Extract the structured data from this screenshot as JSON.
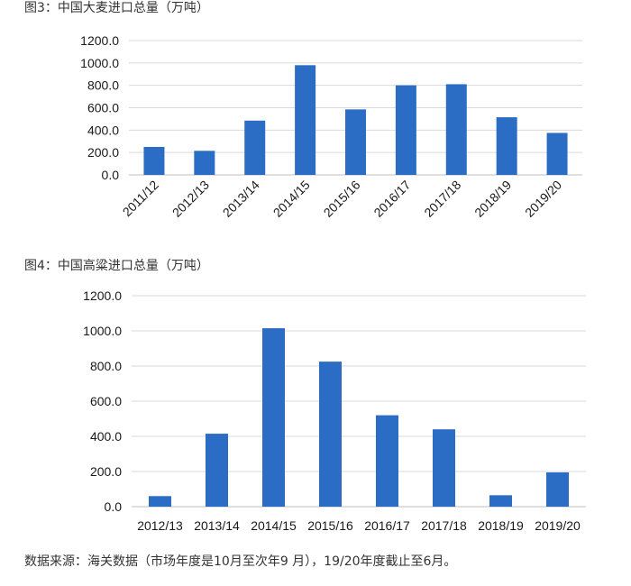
{
  "captions": {
    "chart1": "图3：中国大麦进口总量（万吨）",
    "chart2": "图4：中国高粱进口总量（万吨）",
    "source": "数据来源：海关数据（市场年度是10月至次年9 月），19/20年度截止至6月。"
  },
  "colors": {
    "bar": "#2b6cc4",
    "grid": "#d9d9d9",
    "axis": "#bfbfbf"
  },
  "chart_data": [
    {
      "type": "bar",
      "title": "图3：中国大麦进口总量（万吨）",
      "categories": [
        "2011/12",
        "2012/13",
        "2013/14",
        "2014/15",
        "2015/16",
        "2016/17",
        "2017/18",
        "2018/19",
        "2019/20"
      ],
      "values": [
        250,
        215,
        485,
        980,
        585,
        800,
        810,
        515,
        375
      ],
      "ylim": [
        0,
        1200
      ],
      "yticks": [
        "0.0",
        "200.0",
        "400.0",
        "600.0",
        "800.0",
        "1000.0",
        "1200.0"
      ],
      "grid": true,
      "xtick_rotation": "rotated"
    },
    {
      "type": "bar",
      "title": "图4：中国高粱进口总量（万吨）",
      "categories": [
        "2012/13",
        "2013/14",
        "2014/15",
        "2015/16",
        "2016/17",
        "2017/18",
        "2018/19",
        "2019/20"
      ],
      "values": [
        60,
        415,
        1015,
        825,
        520,
        440,
        65,
        195
      ],
      "ylim": [
        0,
        1200
      ],
      "yticks": [
        "0.0",
        "200.0",
        "400.0",
        "600.0",
        "800.0",
        "1000.0",
        "1200.0"
      ],
      "grid": true,
      "xtick_rotation": "horizontal"
    }
  ]
}
